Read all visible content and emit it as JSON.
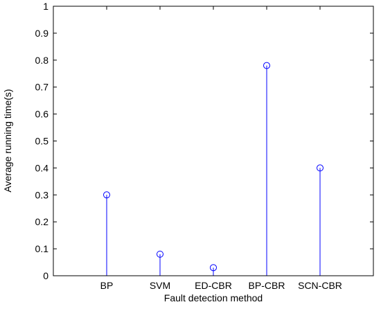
{
  "chart_data": {
    "type": "stem",
    "title": "",
    "xlabel": "Fault detection method",
    "ylabel": "Average running time(s)",
    "categories": [
      "BP",
      "SVM",
      "ED-CBR",
      "BP-CBR",
      "SCN-CBR"
    ],
    "values": [
      0.3,
      0.08,
      0.03,
      0.78,
      0.4
    ],
    "ylim": [
      0,
      1
    ],
    "xlim": [
      0,
      6
    ],
    "yticks": [
      0,
      0.1,
      0.2,
      0.3,
      0.4,
      0.5,
      0.6,
      0.7,
      0.8,
      0.9,
      1
    ],
    "ytick_labels": [
      "0",
      "0.1",
      "0.2",
      "0.3",
      "0.4",
      "0.5",
      "0.6",
      "0.7",
      "0.8",
      "0.9",
      "1"
    ],
    "grid": false,
    "legend": "none",
    "marker": "open-circle",
    "colors": {
      "stem": "#0000ff",
      "marker": "#0000ff",
      "axis": "#000000",
      "background": "#ffffff"
    }
  }
}
